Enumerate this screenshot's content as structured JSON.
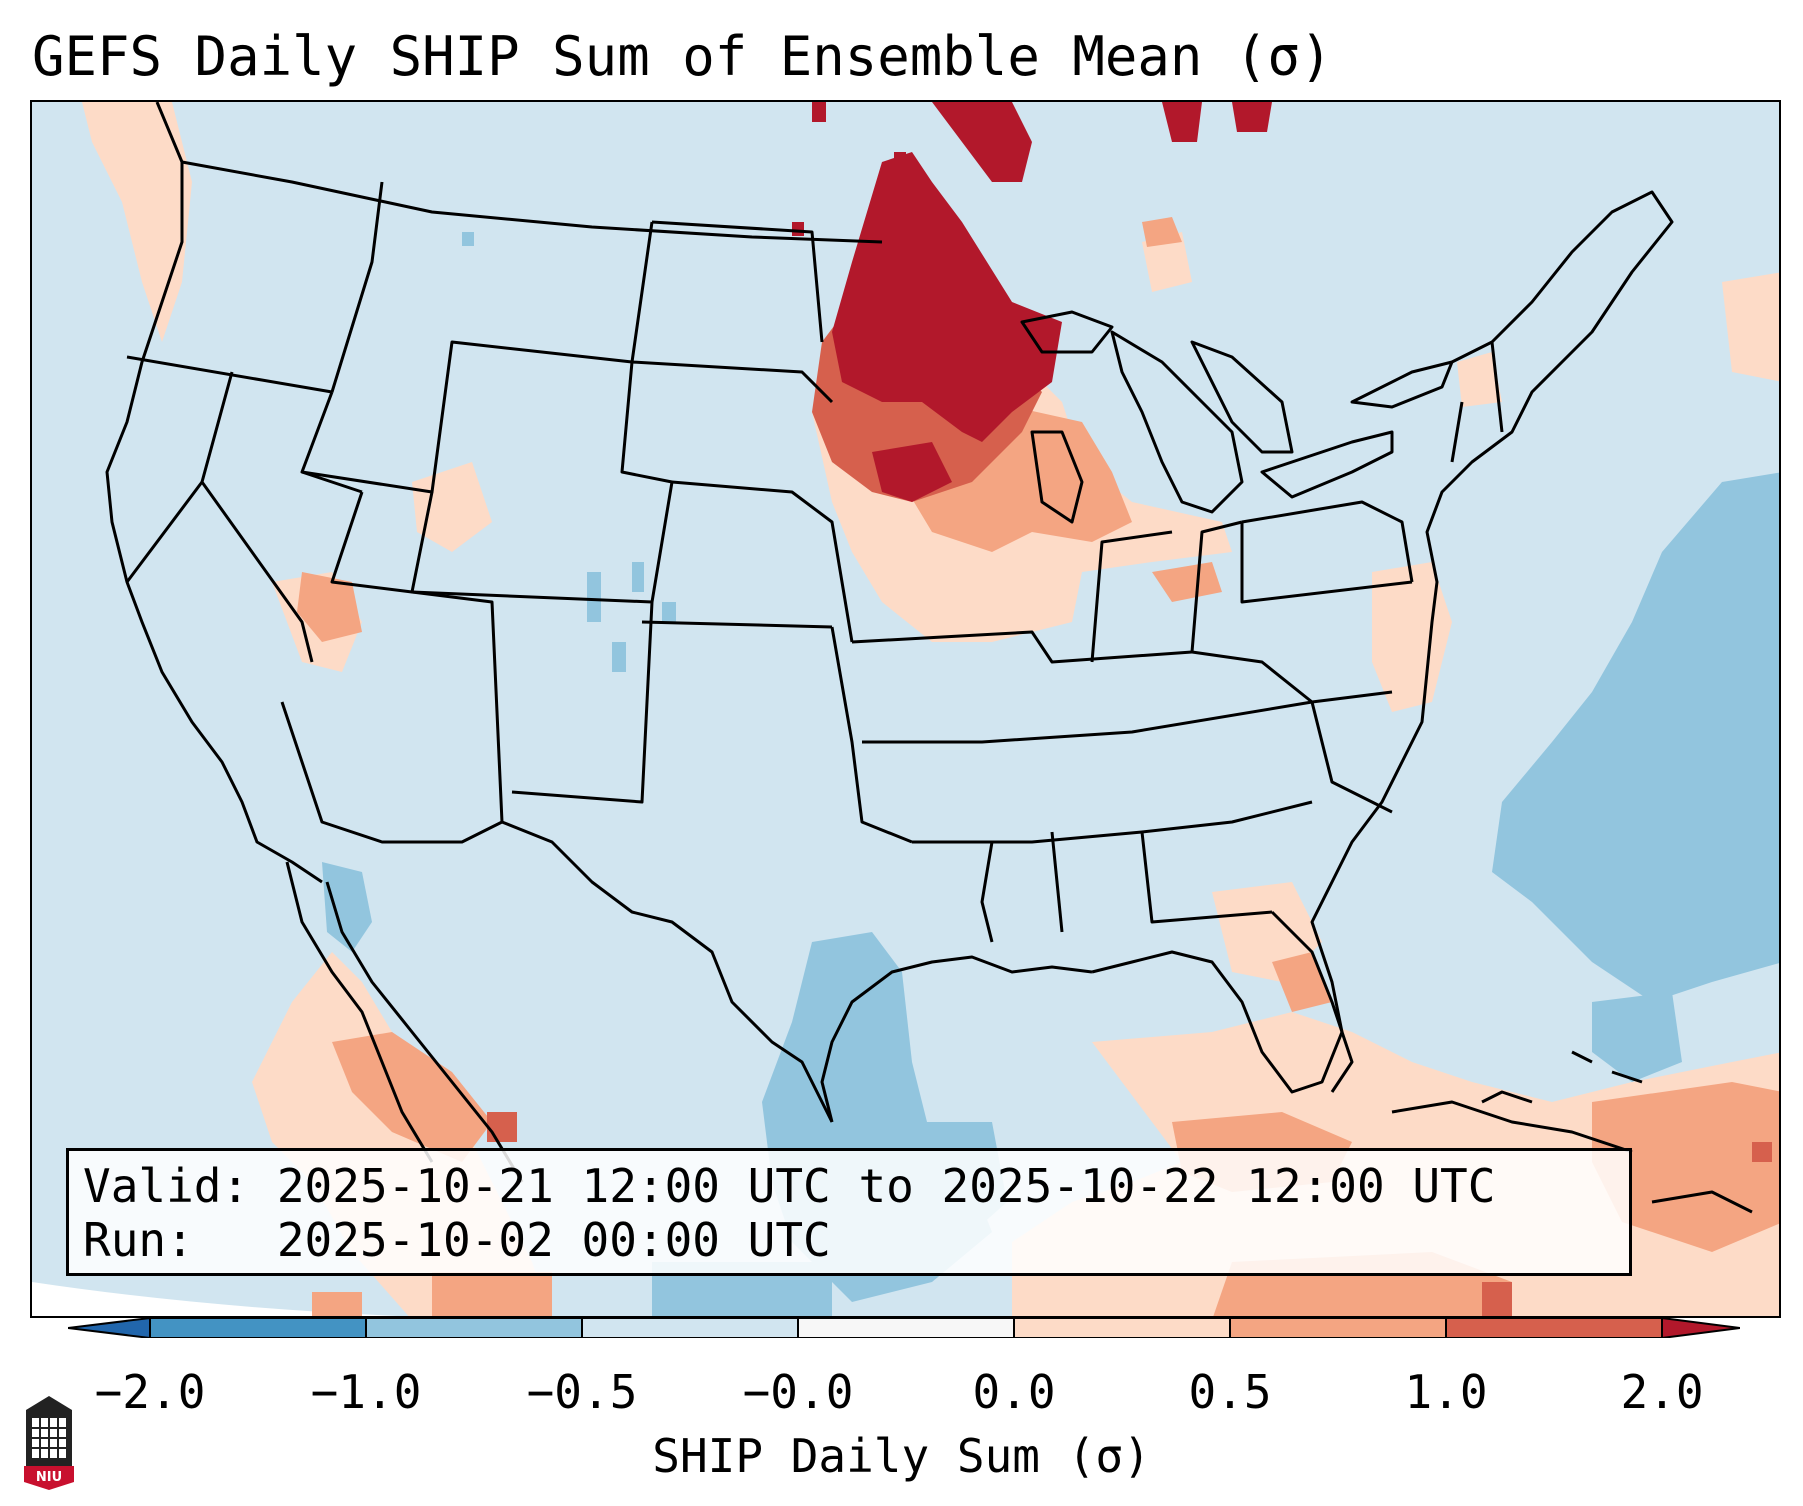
{
  "title": "GEFS Daily SHIP Sum of Ensemble Mean (σ)",
  "info": {
    "valid_line": "Valid: 2025-10-21 12:00 UTC to 2025-10-22 12:00 UTC",
    "run_line": "Run:   2025-10-02 00:00 UTC"
  },
  "colorbar": {
    "label": "SHIP Daily Sum (σ)",
    "ticks": [
      "−2.0",
      "−1.0",
      "−0.5",
      "−0.0",
      "0.0",
      "0.5",
      "1.0",
      "2.0"
    ],
    "bins": [
      {
        "range": "< -2.0",
        "color": "#2166ac"
      },
      {
        "range": "-2.0 to -1.0",
        "color": "#4393c3"
      },
      {
        "range": "-1.0 to -0.5",
        "color": "#92c5de"
      },
      {
        "range": "-0.5 to -0.0",
        "color": "#d1e5f0"
      },
      {
        "range": "-0.0 to 0.0",
        "color": "#f7f7f7"
      },
      {
        "range": "0.0 to 0.5",
        "color": "#fddbc7"
      },
      {
        "range": "0.5 to 1.0",
        "color": "#f4a582"
      },
      {
        "range": "1.0 to 2.0",
        "color": "#d6604d"
      },
      {
        "range": "> 2.0",
        "color": "#b2182b"
      }
    ]
  },
  "logo": {
    "text": "NIU",
    "color": "#c8102e"
  }
}
